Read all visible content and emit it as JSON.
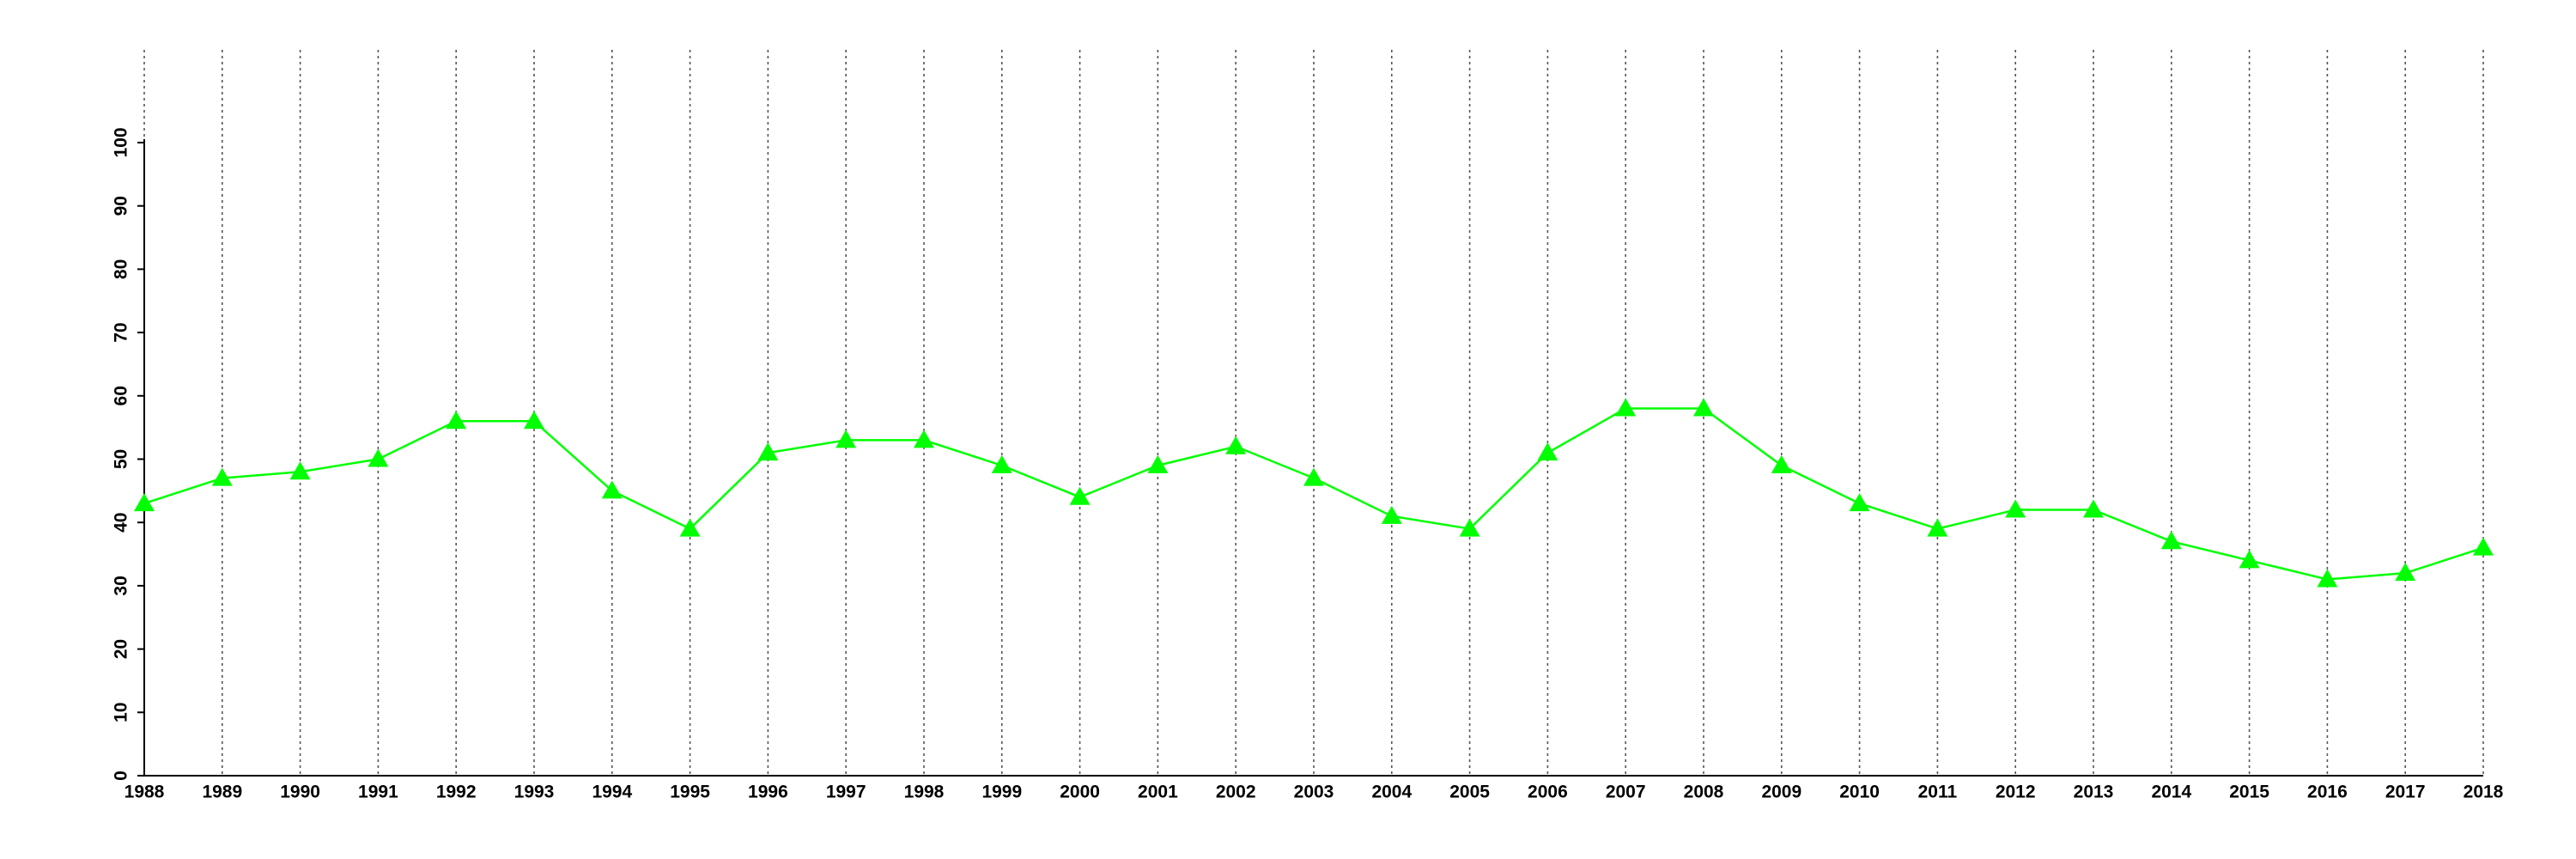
{
  "chart_data": {
    "type": "line",
    "x": [
      1988,
      1989,
      1990,
      1991,
      1992,
      1993,
      1994,
      1995,
      1996,
      1997,
      1998,
      1999,
      2000,
      2001,
      2002,
      2003,
      2004,
      2005,
      2006,
      2007,
      2008,
      2009,
      2010,
      2011,
      2012,
      2013,
      2014,
      2015,
      2016,
      2017,
      2018
    ],
    "values": [
      43,
      47,
      48,
      50,
      56,
      56,
      45,
      39,
      51,
      53,
      53,
      49,
      44,
      49,
      52,
      47,
      41,
      39,
      51,
      58,
      58,
      49,
      43,
      39,
      42,
      42,
      37,
      34,
      31,
      32,
      36
    ],
    "color": "#00ff00",
    "marker": "triangle",
    "xlim": [
      1988,
      2018
    ],
    "xticks": [
      1988,
      1989,
      1990,
      1991,
      1992,
      1993,
      1994,
      1995,
      1996,
      1997,
      1998,
      1999,
      2000,
      2001,
      2002,
      2003,
      2004,
      2005,
      2006,
      2007,
      2008,
      2009,
      2010,
      2011,
      2012,
      2013,
      2014,
      2015,
      2016,
      2017,
      2018
    ],
    "ylim": [
      0,
      100
    ],
    "yticks": [
      0,
      10,
      20,
      30,
      40,
      50,
      60,
      70,
      80,
      90,
      100
    ],
    "grid": "x"
  }
}
